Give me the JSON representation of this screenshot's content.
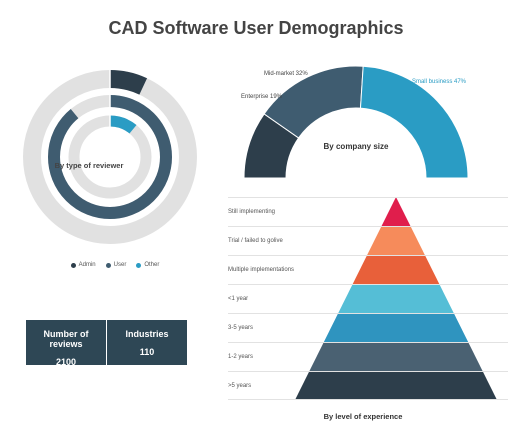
{
  "title": "CAD Software User Demographics",
  "colors": {
    "admin": "#2d3e4b",
    "user": "#3f5c70",
    "other": "#2a9cc4",
    "track": "#e1e1e1",
    "stats_bg": "#2e4755"
  },
  "chart_data": [
    {
      "type": "pie",
      "subtype": "concentric-rings",
      "title": "By type of reviewer",
      "legend_position": "bottom",
      "series": [
        {
          "name": "Admin",
          "value": 7,
          "color": "#2d3e4b"
        },
        {
          "name": "User",
          "value": 89,
          "color": "#3f5c70"
        },
        {
          "name": "Other",
          "value": 11,
          "color": "#2a9cc4"
        }
      ],
      "legend": [
        {
          "name": "Admin",
          "color": "#2d3e4b"
        },
        {
          "name": "User",
          "color": "#3f5c70"
        },
        {
          "name": "Other",
          "color": "#2a9cc4"
        }
      ]
    },
    {
      "type": "pie",
      "subtype": "semi-donut",
      "title": "By company size",
      "series": [
        {
          "label": "Enterprise 19%",
          "value": 19,
          "color": "#2d3e4b"
        },
        {
          "label": "Mid-market 32%",
          "value": 32,
          "color": "#3f5c70"
        },
        {
          "label": "Small business 47%",
          "value": 47,
          "color": "#2a9cc4"
        }
      ]
    },
    {
      "type": "bar",
      "subtype": "pyramid",
      "title": "By level of experience",
      "categories": [
        "Still implementing",
        "Trial / failed to golive",
        "Multiple implementations",
        "<1 year",
        "3-5 years",
        "1-2 years",
        ">5 years"
      ],
      "colors": [
        "#e01e4c",
        "#f68b5b",
        "#e8603a",
        "#55bed6",
        "#2f94bf",
        "#4a6172",
        "#2d3e4b"
      ]
    }
  ],
  "stats": [
    {
      "label": "Number of reviews",
      "value": "2100"
    },
    {
      "label": "Industries",
      "value": "110"
    }
  ]
}
